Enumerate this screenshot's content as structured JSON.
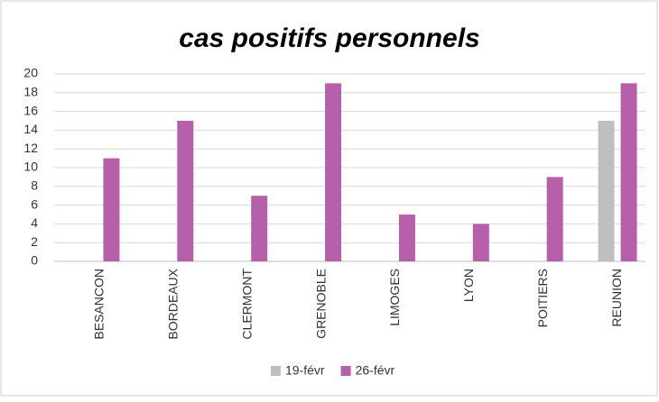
{
  "chart_data": {
    "type": "bar",
    "title": "cas positifs personnels",
    "categories": [
      "BESANCON",
      "BORDEAUX",
      "CLERMONT",
      "GRENOBLE",
      "LIMOGES",
      "LYON",
      "POITIERS",
      "REUNION"
    ],
    "series": [
      {
        "name": "19-févr",
        "color": "#bfbfbf",
        "values": [
          null,
          null,
          null,
          null,
          null,
          null,
          null,
          15
        ]
      },
      {
        "name": "26-févr",
        "color": "#b660ab",
        "values": [
          11,
          15,
          7,
          19,
          5,
          4,
          9,
          19
        ]
      }
    ],
    "ylim": [
      0,
      20
    ],
    "yticks": [
      0,
      2,
      4,
      6,
      8,
      10,
      12,
      14,
      16,
      18,
      20
    ],
    "grid": true,
    "legend": "bottom"
  }
}
